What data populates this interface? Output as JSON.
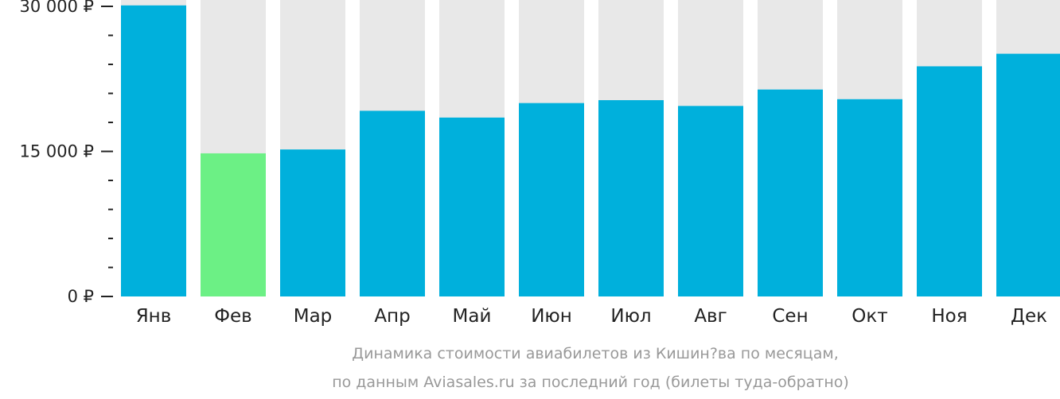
{
  "chart_data": {
    "type": "bar",
    "categories": [
      "Янв",
      "Фев",
      "Мар",
      "Апр",
      "Май",
      "Июн",
      "Июл",
      "Авг",
      "Сен",
      "Окт",
      "Ноя",
      "Дек"
    ],
    "values": [
      30100,
      14800,
      15200,
      19200,
      18500,
      20000,
      20300,
      19700,
      21400,
      20400,
      23800,
      25100
    ],
    "highlight_index": 1,
    "ylim": [
      0,
      30000
    ],
    "yticks": [
      {
        "value": 0,
        "label": "0 ₽"
      },
      {
        "value": 15000,
        "label": "15 000 ₽"
      },
      {
        "value": 30000,
        "label": "30 000 ₽"
      }
    ],
    "minor_tick_step": 3000,
    "title": "",
    "xlabel": "",
    "ylabel": "",
    "caption": [
      "Динамика стоимости авиабилетов из Кишин?ва по месяцам,",
      "по данным Aviasales.ru за последний год (билеты туда-обратно)"
    ],
    "colors": {
      "bar": "#00b0dc",
      "highlight": "#6cf085",
      "track": "#e8e8e8",
      "axis": "#222222",
      "caption": "#999999"
    }
  }
}
